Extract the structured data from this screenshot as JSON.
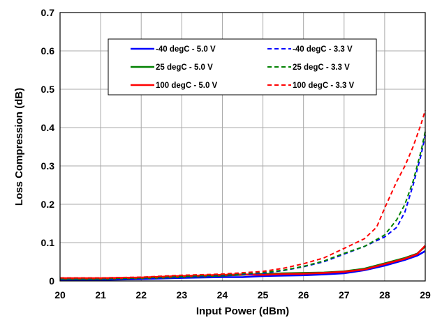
{
  "chart_data": {
    "type": "line",
    "title": "",
    "xlabel": "Input Power (dBm)",
    "ylabel": "Loss Compression (dB)",
    "xlim": [
      20,
      29
    ],
    "ylim": [
      0,
      0.7
    ],
    "xticks": [
      "20",
      "21",
      "22",
      "23",
      "24",
      "25",
      "26",
      "27",
      "28",
      "29"
    ],
    "yticks": [
      "0",
      "0.1",
      "0.2",
      "0.3",
      "0.4",
      "0.5",
      "0.6",
      "0.7"
    ],
    "grid": true,
    "legend_position": "top-center",
    "series": [
      {
        "name": "-40 degC - 5.0 V",
        "color": "#0000ff",
        "dash": false,
        "x": [
          20,
          21,
          22,
          23,
          24,
          24.5,
          25,
          25.5,
          26,
          26.5,
          27,
          27.5,
          28,
          28.5,
          28.8,
          29
        ],
        "y": [
          0.003,
          0.003,
          0.005,
          0.008,
          0.01,
          0.01,
          0.013,
          0.014,
          0.015,
          0.017,
          0.02,
          0.028,
          0.04,
          0.055,
          0.066,
          0.078
        ]
      },
      {
        "name": "25 degC - 5.0 V",
        "color": "#008000",
        "dash": false,
        "x": [
          20,
          21,
          22,
          23,
          24,
          24.5,
          25,
          25.5,
          26,
          26.5,
          27,
          27.5,
          28,
          28.5,
          28.8,
          29
        ],
        "y": [
          0.005,
          0.005,
          0.007,
          0.01,
          0.014,
          0.016,
          0.018,
          0.02,
          0.021,
          0.022,
          0.025,
          0.032,
          0.046,
          0.06,
          0.071,
          0.09
        ]
      },
      {
        "name": "100 degC - 5.0 V",
        "color": "#ff0000",
        "dash": false,
        "x": [
          20,
          21,
          22,
          23,
          24,
          24.5,
          25,
          25.5,
          26,
          26.5,
          27,
          27.5,
          28,
          28.5,
          28.8,
          29
        ],
        "y": [
          0.007,
          0.007,
          0.009,
          0.013,
          0.016,
          0.017,
          0.016,
          0.018,
          0.019,
          0.021,
          0.024,
          0.03,
          0.044,
          0.058,
          0.07,
          0.092
        ]
      },
      {
        "name": "-40 degC - 3.3 V",
        "color": "#0000ff",
        "dash": true,
        "x": [
          20,
          21,
          22,
          23,
          24,
          25,
          25.5,
          26,
          26.5,
          27,
          27.5,
          28,
          28.3,
          28.5,
          28.7,
          28.9,
          29
        ],
        "y": [
          0.005,
          0.005,
          0.006,
          0.01,
          0.015,
          0.02,
          0.027,
          0.037,
          0.05,
          0.07,
          0.09,
          0.115,
          0.14,
          0.18,
          0.25,
          0.33,
          0.38
        ]
      },
      {
        "name": "25 degC - 3.3 V",
        "color": "#008000",
        "dash": true,
        "x": [
          20,
          21,
          22,
          23,
          24,
          25,
          25.5,
          26,
          26.5,
          27,
          27.5,
          28,
          28.3,
          28.5,
          28.7,
          28.9,
          29
        ],
        "y": [
          0.006,
          0.006,
          0.008,
          0.012,
          0.016,
          0.022,
          0.028,
          0.038,
          0.052,
          0.072,
          0.09,
          0.12,
          0.16,
          0.2,
          0.26,
          0.34,
          0.39
        ]
      },
      {
        "name": "100 degC - 3.3 V",
        "color": "#ff0000",
        "dash": true,
        "x": [
          20,
          21,
          22,
          23,
          24,
          25,
          25.5,
          26,
          26.5,
          27,
          27.5,
          27.8,
          28,
          28.3,
          28.5,
          28.7,
          28.9,
          29
        ],
        "y": [
          0.008,
          0.008,
          0.01,
          0.015,
          0.018,
          0.025,
          0.033,
          0.045,
          0.06,
          0.085,
          0.11,
          0.14,
          0.19,
          0.26,
          0.3,
          0.35,
          0.41,
          0.445
        ]
      }
    ],
    "legend_order": [
      0,
      3,
      1,
      4,
      2,
      5
    ]
  }
}
